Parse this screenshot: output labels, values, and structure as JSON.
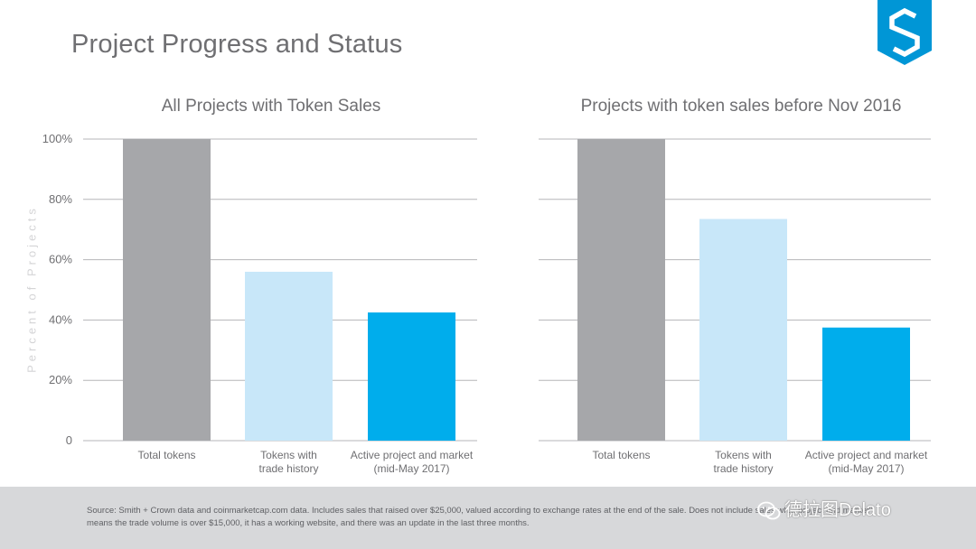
{
  "page": {
    "title": "Project Progress and Status",
    "source_note": "Source: Smith + Crown data and coinmarketcap.com data. Includes sales that raised over $25,000, valued according to exchange rates at the end of the sale.  Does not include sales wh... project and market\" means the trade volume is over $15,000, it has a working website, and there was an update in the last three months.",
    "watermark": "德拉图Delato"
  },
  "colors": {
    "total": "#a6a7aa",
    "trade": "#c8e7f9",
    "active": "#00adec",
    "grid": "#b5b5b8",
    "logo": "#0096d6"
  },
  "icons": {
    "logo": "smith-crown-logo-icon",
    "watermark": "wechat-icon"
  },
  "chart_data": [
    {
      "type": "bar",
      "title": "All Projects with Token Sales",
      "ylabel": "Percent of Projects",
      "ylim": [
        0,
        100
      ],
      "yticks": [
        "0",
        "20%",
        "40%",
        "60%",
        "80%",
        "100%"
      ],
      "categories": [
        "Total tokens",
        "Tokens with trade history",
        "Active project and market (mid-May 2017)"
      ],
      "category_lines": [
        [
          "Total tokens"
        ],
        [
          "Tokens with",
          "trade history"
        ],
        [
          "Active project and market",
          "(mid-May 2017)"
        ]
      ],
      "values": [
        100,
        56,
        42.5
      ],
      "grid": true
    },
    {
      "type": "bar",
      "title": "Projects with token sales before Nov 2016",
      "ylim": [
        0,
        100
      ],
      "categories": [
        "Total tokens",
        "Tokens with trade history",
        "Active project and market (mid-May 2017)"
      ],
      "category_lines": [
        [
          "Total tokens"
        ],
        [
          "Tokens with",
          "trade history"
        ],
        [
          "Active project and market",
          "(mid-May 2017)"
        ]
      ],
      "values": [
        100,
        73.5,
        37.5
      ],
      "grid": true
    }
  ]
}
